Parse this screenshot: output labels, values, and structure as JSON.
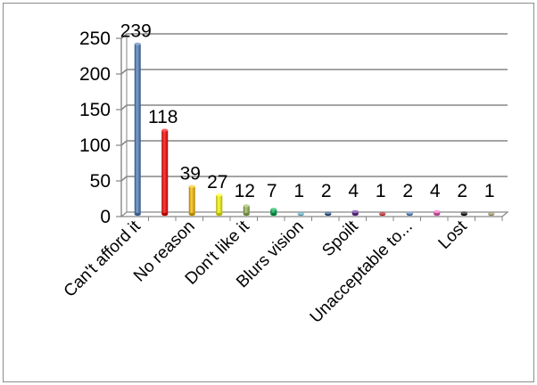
{
  "chart_data": {
    "type": "bar",
    "style": "3d-cylinder",
    "categories": [
      "Can't afford it",
      "",
      "No reason",
      "",
      "Don't  like it",
      "",
      "Blurs vision",
      "",
      "Spoilt",
      "",
      "Unacceptable to...",
      "",
      "Lost",
      ""
    ],
    "values": [
      239,
      118,
      39,
      27,
      12,
      7,
      1,
      2,
      4,
      1,
      2,
      4,
      2,
      1
    ],
    "colors": [
      "#4F81BD",
      "#FF0000",
      "#FFC000",
      "#FFFF00",
      "#9BBB59",
      "#00B050",
      "#4BACC6",
      "#1F497D",
      "#7030A0",
      "#C00000",
      "#4F81BD",
      "#FF66CC",
      "#000000",
      "#948A54"
    ],
    "ylim": [
      0,
      250
    ],
    "yticks": [
      "0",
      "50",
      "100",
      "150",
      "200",
      "250"
    ],
    "grid": true,
    "legend": "none",
    "title": "",
    "xlabel": "",
    "ylabel": ""
  }
}
